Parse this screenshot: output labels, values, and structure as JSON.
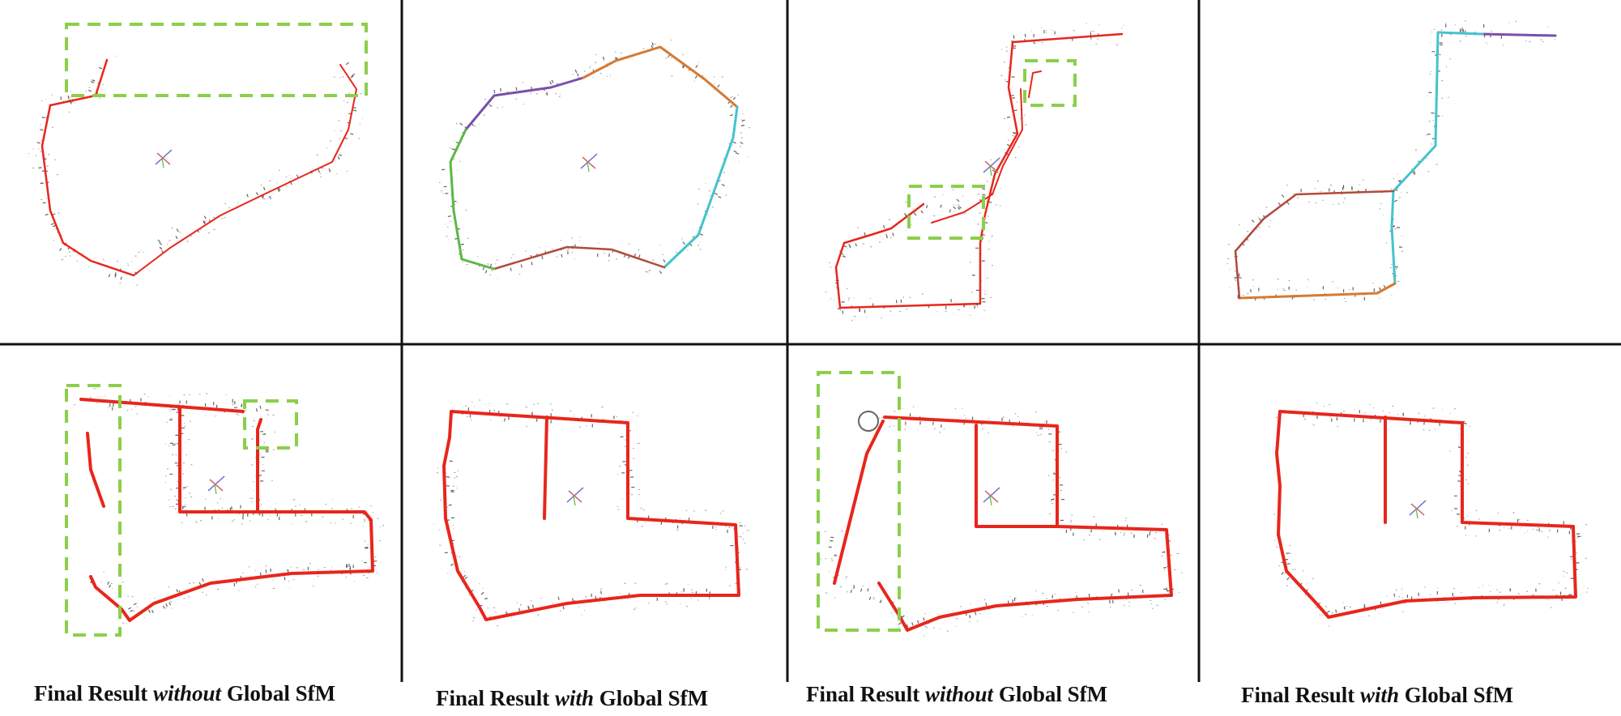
{
  "colors": {
    "trajectory": "#e8261b",
    "highlight_box": "#8ccf4a",
    "divider": "#111111",
    "point_cloud": "#444444",
    "segment_orange": "#d77a32",
    "segment_purple": "#7a4fa8",
    "segment_cyan": "#45c3cc",
    "segment_green": "#5cb843"
  },
  "captions": [
    {
      "pre": "Final Result ",
      "emph": "without",
      "post": " Global SfM"
    },
    {
      "pre": "Final Result ",
      "emph": "with",
      "post": " Global SfM"
    },
    {
      "pre": "Final Result ",
      "emph": "without",
      "post": " Global SfM"
    },
    {
      "pre": "Final Result ",
      "emph": "with",
      "post": " Global SfM"
    }
  ]
}
